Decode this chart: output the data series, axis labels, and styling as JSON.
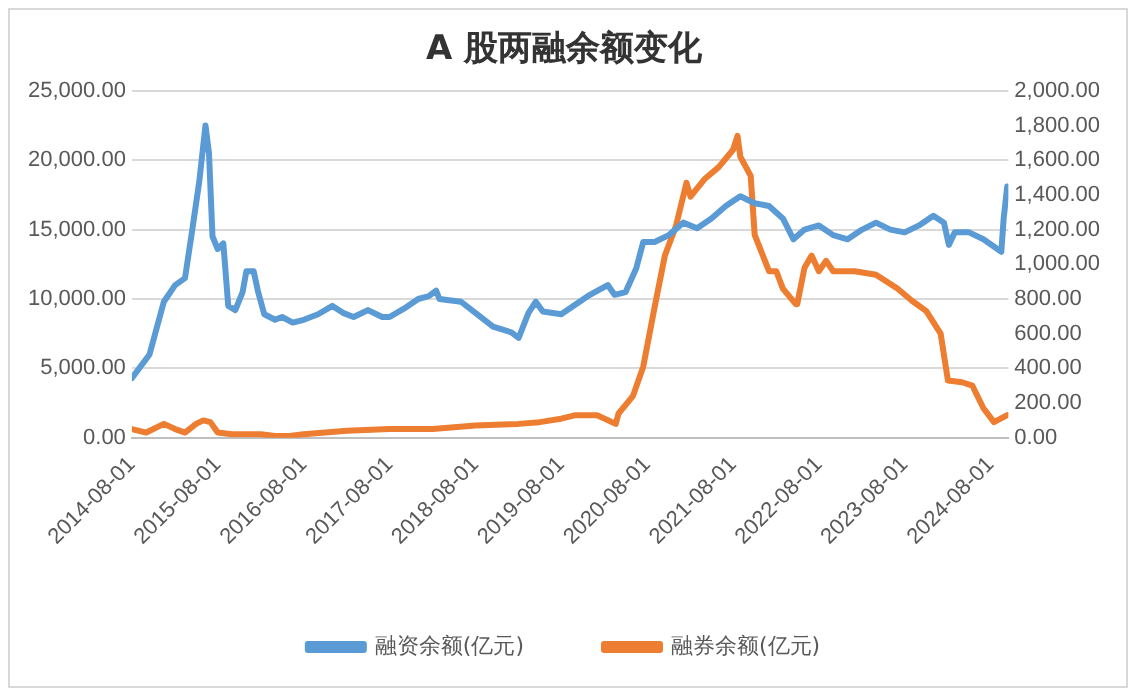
{
  "chart_data": {
    "type": "line",
    "title": "A 股两融余额变化",
    "xlim": [
      "2014-08-01",
      "2024-10-15"
    ],
    "xticks": [
      "2014-08-01",
      "2015-08-01",
      "2016-08-01",
      "2017-08-01",
      "2018-08-01",
      "2019-08-01",
      "2020-08-01",
      "2021-08-01",
      "2022-08-01",
      "2023-08-01",
      "2024-08-01"
    ],
    "ylim": [
      0,
      25000
    ],
    "yticks": [
      {
        "value": 0,
        "label": "0.00"
      },
      {
        "value": 5000,
        "label": "5,000.00"
      },
      {
        "value": 10000,
        "label": "10,000.00"
      },
      {
        "value": 15000,
        "label": "15,000.00"
      },
      {
        "value": 20000,
        "label": "20,000.00"
      },
      {
        "value": 25000,
        "label": "25,000.00"
      }
    ],
    "y2lim": [
      0,
      2000
    ],
    "y2ticks": [
      {
        "value": 0,
        "label": "0.00"
      },
      {
        "value": 200,
        "label": "200.00"
      },
      {
        "value": 400,
        "label": "400.00"
      },
      {
        "value": 600,
        "label": "600.00"
      },
      {
        "value": 800,
        "label": "800.00"
      },
      {
        "value": 1000,
        "label": "1,000.00"
      },
      {
        "value": 1200,
        "label": "1,200.00"
      },
      {
        "value": 1400,
        "label": "1,400.00"
      },
      {
        "value": 1600,
        "label": "1,600.00"
      },
      {
        "value": 1800,
        "label": "1,800.00"
      },
      {
        "value": 2000,
        "label": "2,000.00"
      }
    ],
    "grid": "y",
    "legend": "bottom",
    "marker": "none",
    "line_style": "solid",
    "series": [
      {
        "name": "融资余额(亿元)",
        "color": "#5b9bd5",
        "x": [
          "2014-08-01",
          "2014-10-15",
          "2014-12-15",
          "2015-02-01",
          "2015-03-15",
          "2015-04-15",
          "2015-05-15",
          "2015-06-10",
          "2015-06-25",
          "2015-07-10",
          "2015-08-01",
          "2015-08-25",
          "2015-09-15",
          "2015-10-15",
          "2015-11-15",
          "2015-12-01",
          "2016-01-01",
          "2016-01-20",
          "2016-02-15",
          "2016-04-01",
          "2016-05-01",
          "2016-06-15",
          "2016-08-01",
          "2016-10-01",
          "2016-12-01",
          "2017-01-15",
          "2017-03-01",
          "2017-05-01",
          "2017-07-01",
          "2017-08-01",
          "2017-10-01",
          "2017-12-01",
          "2018-01-15",
          "2018-02-15",
          "2018-03-01",
          "2018-06-01",
          "2018-08-01",
          "2018-10-15",
          "2019-01-01",
          "2019-02-01",
          "2019-03-15",
          "2019-04-15",
          "2019-05-15",
          "2019-08-01",
          "2019-10-01",
          "2019-12-01",
          "2020-02-15",
          "2020-03-15",
          "2020-05-01",
          "2020-06-15",
          "2020-07-15",
          "2020-09-01",
          "2020-11-01",
          "2021-01-01",
          "2021-03-01",
          "2021-05-01",
          "2021-07-01",
          "2021-09-01",
          "2021-11-01",
          "2022-01-01",
          "2022-03-01",
          "2022-04-15",
          "2022-06-01",
          "2022-08-01",
          "2022-10-01",
          "2022-12-01",
          "2023-02-01",
          "2023-04-01",
          "2023-06-01",
          "2023-08-01",
          "2023-10-01",
          "2023-12-01",
          "2024-01-15",
          "2024-02-05",
          "2024-03-01",
          "2024-05-01",
          "2024-07-01",
          "2024-09-15",
          "2024-09-25",
          "2024-10-10"
        ],
        "values": [
          4300,
          6000,
          9800,
          11000,
          11500,
          15000,
          18500,
          22500,
          20500,
          14500,
          13600,
          14000,
          9500,
          9200,
          10500,
          12000,
          12000,
          10500,
          8900,
          8500,
          8700,
          8300,
          8500,
          8900,
          9500,
          9000,
          8700,
          9200,
          8700,
          8700,
          9300,
          10000,
          10200,
          10600,
          10000,
          9800,
          9000,
          8000,
          7600,
          7200,
          9000,
          9800,
          9100,
          8900,
          9600,
          10300,
          11000,
          10300,
          10500,
          12200,
          14100,
          14100,
          14600,
          15500,
          15100,
          15800,
          16700,
          17400,
          16900,
          16700,
          15800,
          14300,
          15000,
          15300,
          14600,
          14300,
          15000,
          15500,
          15000,
          14800,
          15300,
          16000,
          15500,
          13900,
          14800,
          14800,
          14300,
          13400,
          15800,
          18100
        ]
      },
      {
        "name": "融券余额(亿元)",
        "color": "#ed7d31",
        "axis": "y2",
        "x": [
          "2014-08-01",
          "2014-10-01",
          "2014-12-15",
          "2015-02-01",
          "2015-03-15",
          "2015-05-01",
          "2015-06-01",
          "2015-07-01",
          "2015-08-01",
          "2015-10-01",
          "2016-02-01",
          "2016-04-01",
          "2016-06-01",
          "2016-08-01",
          "2017-02-01",
          "2017-08-01",
          "2018-02-01",
          "2018-08-01",
          "2019-02-01",
          "2019-05-01",
          "2019-08-01",
          "2019-10-01",
          "2020-01-01",
          "2020-03-20",
          "2020-04-01",
          "2020-06-01",
          "2020-07-15",
          "2020-09-01",
          "2020-10-15",
          "2020-12-01",
          "2021-01-15",
          "2021-02-01",
          "2021-04-01",
          "2021-06-01",
          "2021-08-01",
          "2021-08-20",
          "2021-09-01",
          "2021-10-15",
          "2021-11-01",
          "2022-01-01",
          "2022-02-01",
          "2022-03-01",
          "2022-04-25",
          "2022-05-01",
          "2022-06-01",
          "2022-07-01",
          "2022-08-01",
          "2022-09-01",
          "2022-10-01",
          "2023-01-01",
          "2023-04-01",
          "2023-07-01",
          "2023-09-01",
          "2023-11-01",
          "2024-01-01",
          "2024-02-01",
          "2024-04-01",
          "2024-05-15",
          "2024-07-01",
          "2024-08-15",
          "2024-10-10"
        ],
        "values": [
          50,
          30,
          80,
          50,
          30,
          80,
          100,
          90,
          30,
          20,
          20,
          10,
          10,
          20,
          40,
          50,
          50,
          70,
          80,
          90,
          110,
          130,
          130,
          80,
          140,
          240,
          410,
          750,
          1050,
          1220,
          1470,
          1390,
          1490,
          1560,
          1660,
          1740,
          1620,
          1510,
          1170,
          960,
          960,
          860,
          770,
          770,
          980,
          1050,
          960,
          1020,
          960,
          960,
          940,
          860,
          790,
          730,
          600,
          330,
          320,
          300,
          170,
          90,
          130
        ]
      }
    ]
  }
}
